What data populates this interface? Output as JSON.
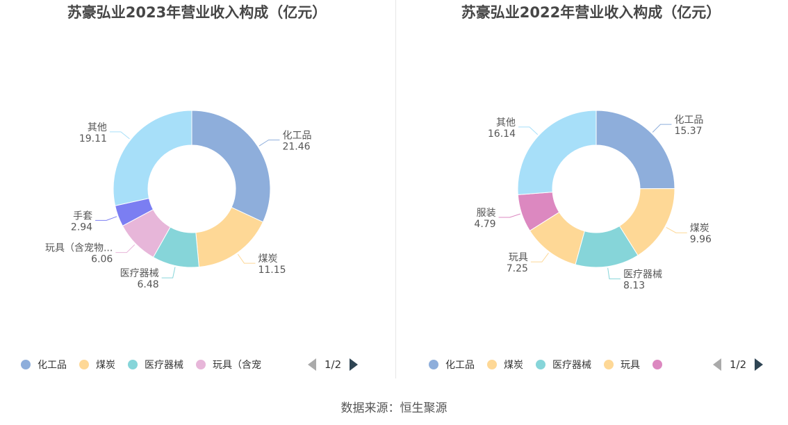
{
  "charts": [
    {
      "title": "苏豪弘业2023年营业收入构成（亿元）",
      "slices": [
        {
          "name": "化工品",
          "value": 21.46,
          "color": "#8eaedb"
        },
        {
          "name": "煤炭",
          "value": 11.15,
          "color": "#fed896"
        },
        {
          "name": "医疗器械",
          "value": 6.48,
          "color": "#86d5d9"
        },
        {
          "name": "玩具（含宠物...",
          "value": 6.06,
          "color": "#e7b6d9"
        },
        {
          "name": "手套",
          "value": 2.94,
          "color": "#7b7ef2"
        },
        {
          "name": "其他",
          "value": 19.11,
          "color": "#a7dff9"
        }
      ],
      "legend": [
        {
          "label": "化工品",
          "color": "#8eaedb"
        },
        {
          "label": "煤炭",
          "color": "#fed896"
        },
        {
          "label": "医疗器械",
          "color": "#86d5d9"
        },
        {
          "label": "玩具（含宠",
          "color": "#e7b6d9"
        }
      ],
      "pager": "1/2"
    },
    {
      "title": "苏豪弘业2022年营业收入构成（亿元）",
      "slices": [
        {
          "name": "化工品",
          "value": 15.37,
          "color": "#8eaedb"
        },
        {
          "name": "煤炭",
          "value": 9.96,
          "color": "#fed896"
        },
        {
          "name": "医疗器械",
          "value": 8.13,
          "color": "#86d5d9"
        },
        {
          "name": "玩具",
          "value": 7.25,
          "color": "#fed896"
        },
        {
          "name": "服装",
          "value": 4.79,
          "color": "#dc88c0"
        },
        {
          "name": "其他",
          "value": 16.14,
          "color": "#a7dff9"
        }
      ],
      "legend": [
        {
          "label": "化工品",
          "color": "#8eaedb"
        },
        {
          "label": "煤炭",
          "color": "#fed896"
        },
        {
          "label": "医疗器械",
          "color": "#86d5d9"
        },
        {
          "label": "玩具",
          "color": "#fed896"
        },
        {
          "label": "",
          "color": "#dc88c0"
        }
      ],
      "pager": "1/2"
    }
  ],
  "chart_data": [
    {
      "type": "pie",
      "title": "苏豪弘业2023年营业收入构成（亿元）",
      "categories": [
        "化工品",
        "煤炭",
        "医疗器械",
        "玩具（含宠物...",
        "手套",
        "其他"
      ],
      "values": [
        21.46,
        11.15,
        6.48,
        6.06,
        2.94,
        19.11
      ],
      "legend": "bottom"
    },
    {
      "type": "pie",
      "title": "苏豪弘业2022年营业收入构成（亿元）",
      "categories": [
        "化工品",
        "煤炭",
        "医疗器械",
        "玩具",
        "服装",
        "其他"
      ],
      "values": [
        15.37,
        9.96,
        8.13,
        7.25,
        4.79,
        16.14
      ],
      "legend": "bottom"
    }
  ],
  "footer": "数据来源：恒生聚源"
}
